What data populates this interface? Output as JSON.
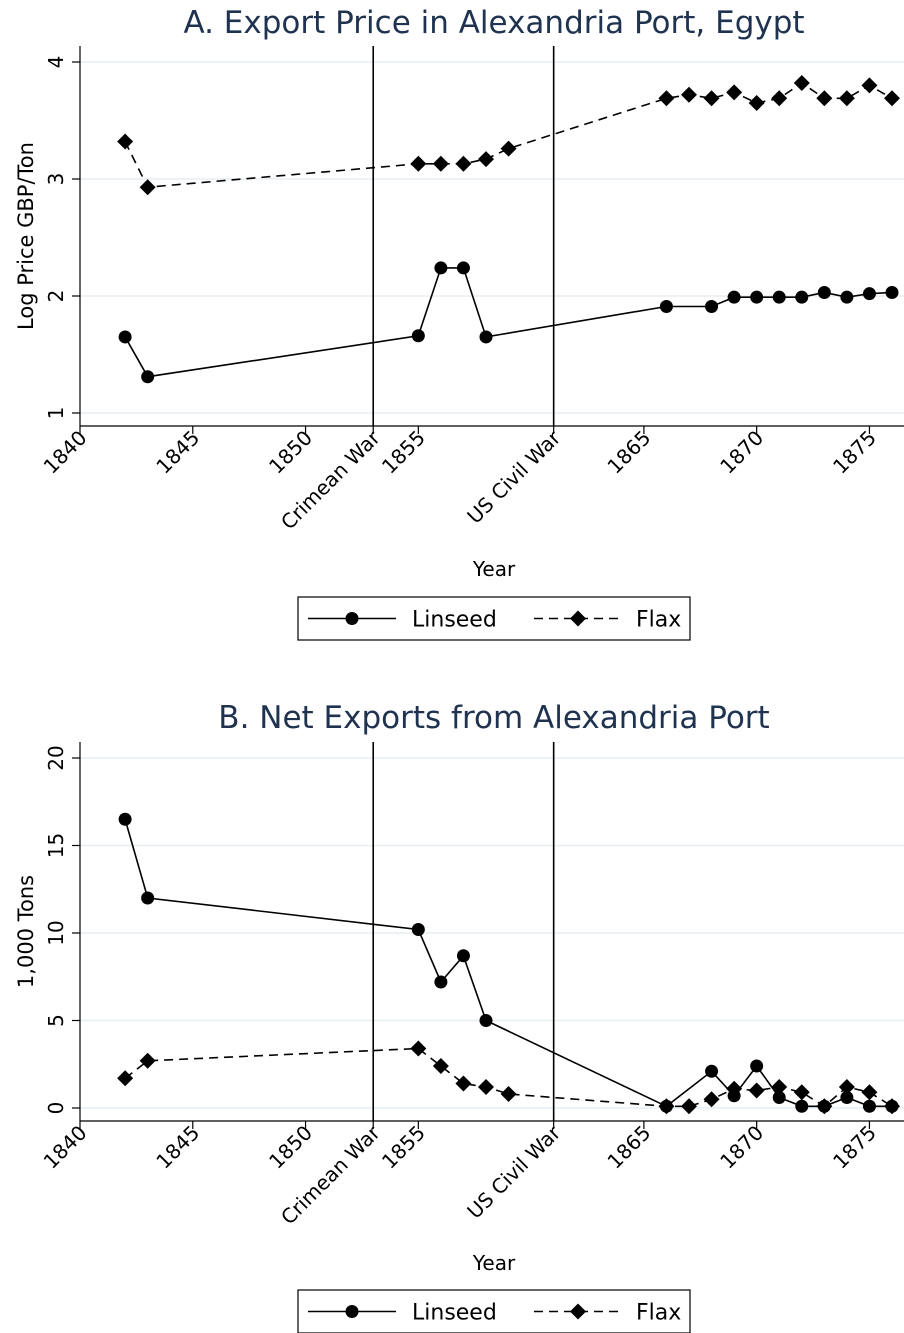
{
  "colors": {
    "title": "#1f3350",
    "grid": "#e6eef2",
    "series": "#000000"
  },
  "chart_data": [
    {
      "type": "line",
      "title": "A. Export Price in Alexandria Port, Egypt",
      "xlabel": "Year",
      "ylabel": "Log Price GBP/Ton",
      "xlim": [
        1840,
        1876
      ],
      "ylim": [
        1,
        4
      ],
      "xticks": [
        {
          "value": 1840,
          "label": "1840"
        },
        {
          "value": 1845,
          "label": "1845"
        },
        {
          "value": 1850,
          "label": "1850"
        },
        {
          "value": 1853,
          "label": "Crimean War"
        },
        {
          "value": 1855,
          "label": "1855"
        },
        {
          "value": 1861,
          "label": "US Civil War"
        },
        {
          "value": 1865,
          "label": "1865"
        },
        {
          "value": 1870,
          "label": "1870"
        },
        {
          "value": 1875,
          "label": "1875"
        }
      ],
      "yticks": [
        1,
        2,
        3,
        4
      ],
      "vlines": [
        1853,
        1861
      ],
      "grid": true,
      "legend": "bottom",
      "series": [
        {
          "name": "Linseed",
          "marker": "circle",
          "line": "solid",
          "x": [
            1842,
            1843,
            1855,
            1856,
            1857,
            1858,
            1866,
            1868,
            1869,
            1870,
            1871,
            1872,
            1873,
            1874,
            1875,
            1876
          ],
          "y": [
            1.65,
            1.31,
            1.66,
            2.24,
            2.24,
            1.65,
            1.91,
            1.91,
            1.99,
            1.99,
            1.99,
            1.99,
            2.03,
            1.99,
            2.02,
            2.03
          ]
        },
        {
          "name": "Flax",
          "marker": "diamond",
          "line": "dashed",
          "x": [
            1842,
            1843,
            1855,
            1856,
            1857,
            1858,
            1859,
            1866,
            1867,
            1868,
            1869,
            1870,
            1871,
            1872,
            1873,
            1874,
            1875,
            1876
          ],
          "y": [
            3.32,
            2.93,
            3.13,
            3.13,
            3.13,
            3.17,
            3.26,
            3.69,
            3.72,
            3.69,
            3.74,
            3.65,
            3.69,
            3.82,
            3.69,
            3.69,
            3.8,
            3.69
          ]
        }
      ]
    },
    {
      "type": "line",
      "title": "B. Net Exports from Alexandria Port",
      "xlabel": "Year",
      "ylabel": "1,000 Tons",
      "xlim": [
        1840,
        1876
      ],
      "ylim": [
        0,
        20
      ],
      "xticks": [
        {
          "value": 1840,
          "label": "1840"
        },
        {
          "value": 1845,
          "label": "1845"
        },
        {
          "value": 1850,
          "label": "1850"
        },
        {
          "value": 1853,
          "label": "Crimean War"
        },
        {
          "value": 1855,
          "label": "1855"
        },
        {
          "value": 1861,
          "label": "US Civil War"
        },
        {
          "value": 1865,
          "label": "1865"
        },
        {
          "value": 1870,
          "label": "1870"
        },
        {
          "value": 1875,
          "label": "1875"
        }
      ],
      "yticks": [
        0,
        5,
        10,
        15,
        20
      ],
      "vlines": [
        1853,
        1861
      ],
      "grid": true,
      "legend": "bottom",
      "series": [
        {
          "name": "Linseed",
          "marker": "circle",
          "line": "solid",
          "x": [
            1842,
            1843,
            1855,
            1856,
            1857,
            1858,
            1866,
            1868,
            1869,
            1870,
            1871,
            1872,
            1873,
            1874,
            1875,
            1876
          ],
          "y": [
            16.5,
            12.0,
            10.2,
            7.2,
            8.7,
            5.0,
            0.1,
            2.1,
            0.7,
            2.4,
            0.6,
            0.1,
            0.1,
            0.6,
            0.1,
            0.1
          ]
        },
        {
          "name": "Flax",
          "marker": "diamond",
          "line": "dashed",
          "x": [
            1842,
            1843,
            1855,
            1856,
            1857,
            1858,
            1859,
            1866,
            1867,
            1868,
            1869,
            1870,
            1871,
            1872,
            1873,
            1874,
            1875,
            1876
          ],
          "y": [
            1.7,
            2.7,
            3.4,
            2.4,
            1.4,
            1.2,
            0.8,
            0.1,
            0.1,
            0.5,
            1.1,
            1.0,
            1.2,
            0.9,
            0.1,
            1.2,
            0.9,
            0.1
          ]
        }
      ]
    }
  ]
}
